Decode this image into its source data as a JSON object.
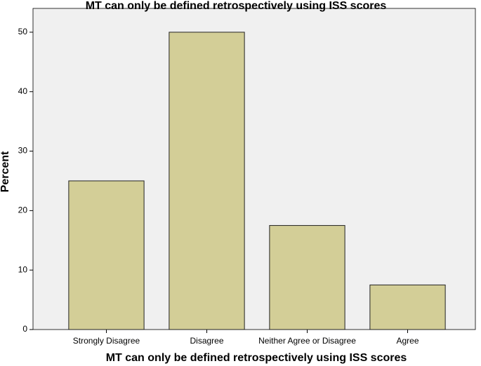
{
  "chart_data": {
    "type": "bar",
    "title": "MT can only be defined retrospectively using ISS scores",
    "x_label": "MT can only be defined retrospectively using ISS scores",
    "y_label": "Percent",
    "categories": [
      "Strongly Disagree",
      "Disagree",
      "Neither Agree or Disagree",
      "Agree"
    ],
    "values": [
      25,
      50,
      17.5,
      7.5
    ],
    "color": "#d3ce97",
    "ylim": [
      0,
      54
    ],
    "yticks": [
      0,
      10,
      20,
      30,
      40,
      50
    ],
    "grid": false
  }
}
